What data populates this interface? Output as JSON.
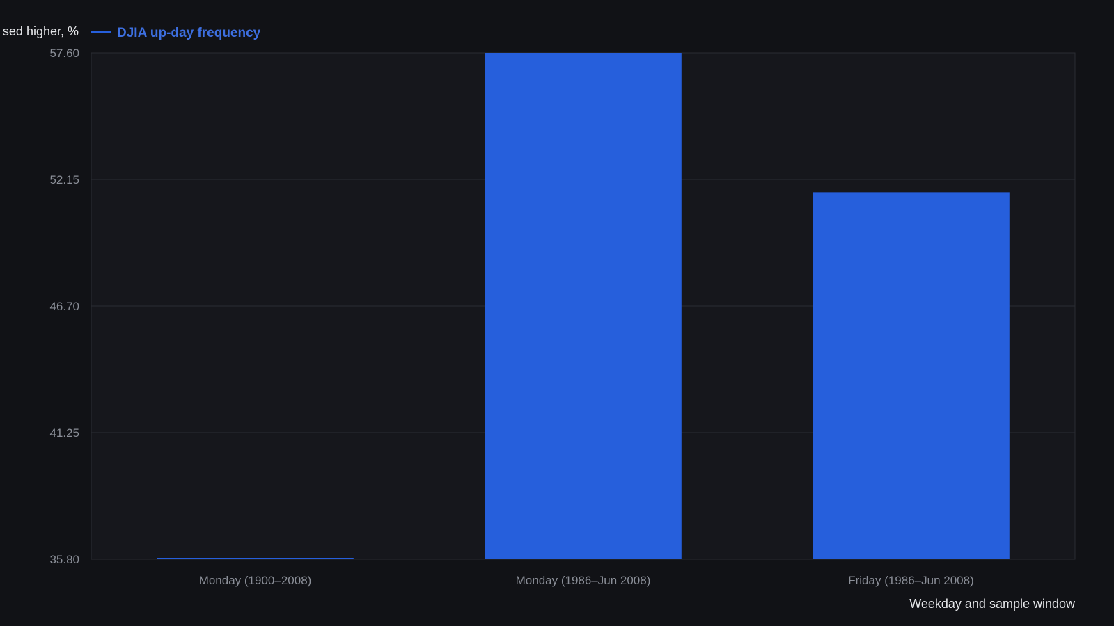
{
  "chart_data": {
    "type": "bar",
    "title": "",
    "xlabel": "Weekday and sample window",
    "ylabel": "sed higher, %",
    "categories": [
      "Monday (1900–2008)",
      "Monday (1986–Jun 2008)",
      "Friday (1986–Jun 2008)"
    ],
    "series": [
      {
        "name": "DJIA up-day frequency",
        "values": [
          35.8,
          57.6,
          51.6
        ]
      }
    ],
    "ylim": [
      35.8,
      57.6
    ],
    "yticks": [
      "35.80",
      "41.25",
      "46.70",
      "52.15",
      "57.60"
    ],
    "grid": true,
    "legend_position": "top-left",
    "colors": {
      "background": "#111216",
      "plot_background": "#16171c",
      "bar": "#265fdc",
      "grid": "#2a2c33",
      "legend_text": "#3d6fe0"
    }
  }
}
